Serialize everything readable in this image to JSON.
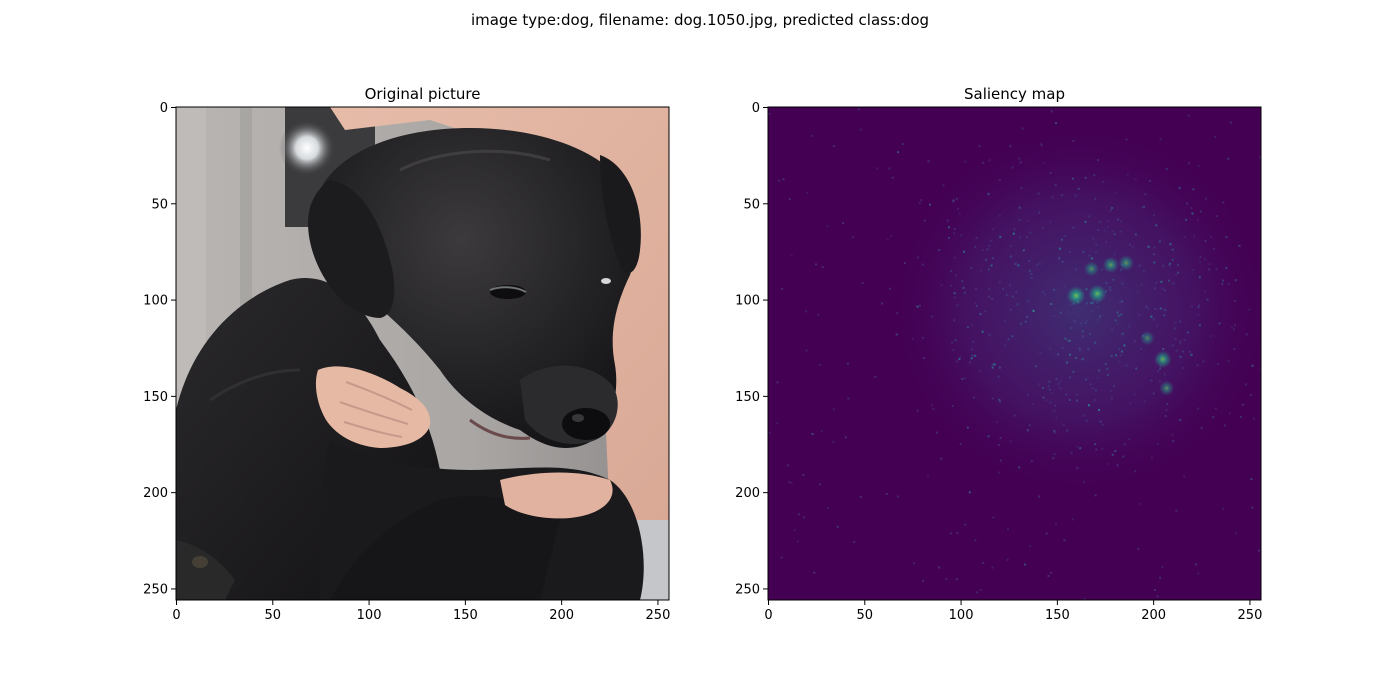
{
  "figure": {
    "suptitle": "image type:dog, filename: dog.1050.jpg, predicted class:dog"
  },
  "chart_data": [
    {
      "type": "heatmap",
      "title": "Original picture",
      "content": "photo",
      "xlim": [
        0,
        256
      ],
      "ylim": [
        256,
        0
      ],
      "xticks": [
        0,
        50,
        100,
        150,
        200,
        250
      ],
      "yticks": [
        0,
        50,
        100,
        150,
        200,
        250
      ],
      "xtick_labels": [
        "0",
        "50",
        "100",
        "150",
        "200",
        "250"
      ],
      "ytick_labels": [
        "0",
        "50",
        "100",
        "150",
        "200",
        "250"
      ]
    },
    {
      "type": "heatmap",
      "title": "Saliency map",
      "content": "saliency",
      "colormap": "viridis",
      "xlim": [
        0,
        256
      ],
      "ylim": [
        256,
        0
      ],
      "xticks": [
        0,
        50,
        100,
        150,
        200,
        250
      ],
      "yticks": [
        0,
        50,
        100,
        150,
        200,
        250
      ],
      "xtick_labels": [
        "0",
        "50",
        "100",
        "150",
        "200",
        "250"
      ],
      "ytick_labels": [
        "0",
        "50",
        "100",
        "150",
        "200",
        "250"
      ],
      "hotspots": [
        {
          "x": 160,
          "y": 98,
          "intensity": 0.9
        },
        {
          "x": 171,
          "y": 97,
          "intensity": 0.85
        },
        {
          "x": 178,
          "y": 82,
          "intensity": 0.7
        },
        {
          "x": 186,
          "y": 81,
          "intensity": 0.65
        },
        {
          "x": 205,
          "y": 131,
          "intensity": 0.8
        },
        {
          "x": 168,
          "y": 84,
          "intensity": 0.6
        },
        {
          "x": 207,
          "y": 146,
          "intensity": 0.6
        },
        {
          "x": 197,
          "y": 120,
          "intensity": 0.55
        }
      ]
    }
  ]
}
